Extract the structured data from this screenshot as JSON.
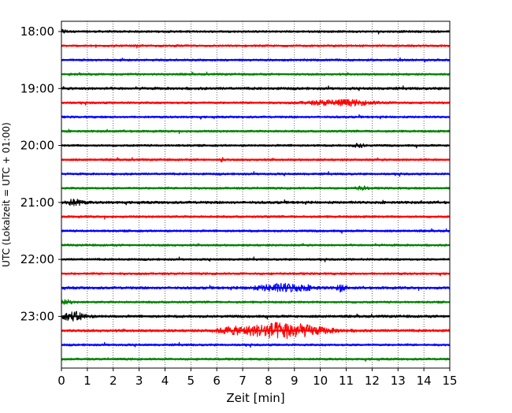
{
  "chart_data": {
    "type": "line",
    "title": "",
    "xlabel": "Zeit  [min]",
    "ylabel": "UTC (Lokalzeit = UTC + 01:00)",
    "xlim": [
      0,
      15
    ],
    "x_ticks": [
      0,
      1,
      2,
      3,
      4,
      5,
      6,
      7,
      8,
      9,
      10,
      11,
      12,
      13,
      14,
      15
    ],
    "y_tick_labels": [
      "18:00",
      "19:00",
      "20:00",
      "21:00",
      "22:00",
      "23:00"
    ],
    "grid": "vertical-dotted",
    "trace_interval_min": 15,
    "trace_colors_cycle": [
      "#000000",
      "#ff0000",
      "#0000ff",
      "#008000"
    ],
    "traces": [
      {
        "start": "18:00",
        "color": "#000000",
        "noise": 0.25,
        "events": [
          {
            "t": 0.1,
            "amp": 0.35,
            "w": 0.15
          }
        ]
      },
      {
        "start": "18:15",
        "color": "#ff0000",
        "noise": 0.25,
        "events": []
      },
      {
        "start": "18:30",
        "color": "#0000ff",
        "noise": 0.25,
        "events": []
      },
      {
        "start": "18:45",
        "color": "#008000",
        "noise": 0.25,
        "events": []
      },
      {
        "start": "19:00",
        "color": "#000000",
        "noise": 0.3,
        "events": []
      },
      {
        "start": "19:15",
        "color": "#ff0000",
        "noise": 0.25,
        "events": [
          {
            "t": 10.8,
            "amp": 0.6,
            "w": 1.2
          }
        ]
      },
      {
        "start": "19:30",
        "color": "#0000ff",
        "noise": 0.25,
        "events": []
      },
      {
        "start": "19:45",
        "color": "#008000",
        "noise": 0.25,
        "events": []
      },
      {
        "start": "20:00",
        "color": "#000000",
        "noise": 0.25,
        "events": [
          {
            "t": 11.5,
            "amp": 0.4,
            "w": 0.2
          }
        ]
      },
      {
        "start": "20:15",
        "color": "#ff0000",
        "noise": 0.25,
        "events": [
          {
            "t": 6.2,
            "amp": 0.5,
            "w": 0.05
          }
        ]
      },
      {
        "start": "20:30",
        "color": "#0000ff",
        "noise": 0.25,
        "events": []
      },
      {
        "start": "20:45",
        "color": "#008000",
        "noise": 0.25,
        "events": [
          {
            "t": 11.6,
            "amp": 0.35,
            "w": 0.2
          }
        ]
      },
      {
        "start": "21:00",
        "color": "#000000",
        "noise": 0.3,
        "events": [
          {
            "t": 0.5,
            "amp": 0.6,
            "w": 0.35
          }
        ]
      },
      {
        "start": "21:15",
        "color": "#ff0000",
        "noise": 0.25,
        "events": []
      },
      {
        "start": "21:30",
        "color": "#0000ff",
        "noise": 0.25,
        "events": []
      },
      {
        "start": "21:45",
        "color": "#008000",
        "noise": 0.25,
        "events": []
      },
      {
        "start": "22:00",
        "color": "#000000",
        "noise": 0.25,
        "events": []
      },
      {
        "start": "22:15",
        "color": "#ff0000",
        "noise": 0.25,
        "events": []
      },
      {
        "start": "22:30",
        "color": "#0000ff",
        "noise": 0.3,
        "events": [
          {
            "t": 8.6,
            "amp": 0.8,
            "w": 1.0
          },
          {
            "t": 10.8,
            "amp": 0.7,
            "w": 0.15
          }
        ]
      },
      {
        "start": "22:45",
        "color": "#008000",
        "noise": 0.25,
        "events": [
          {
            "t": 0.2,
            "amp": 0.4,
            "w": 0.2
          }
        ]
      },
      {
        "start": "23:00",
        "color": "#000000",
        "noise": 0.3,
        "events": [
          {
            "t": 0.5,
            "amp": 0.9,
            "w": 0.45
          }
        ]
      },
      {
        "start": "23:15",
        "color": "#ff0000",
        "noise": 0.3,
        "events": [
          {
            "t": 8.5,
            "amp": 1.7,
            "w": 1.5
          },
          {
            "t": 6.5,
            "amp": 0.4,
            "w": 0.5
          }
        ]
      },
      {
        "start": "23:30",
        "color": "#0000ff",
        "noise": 0.25,
        "events": []
      },
      {
        "start": "23:45",
        "color": "#008000",
        "noise": 0.25,
        "events": []
      }
    ]
  }
}
